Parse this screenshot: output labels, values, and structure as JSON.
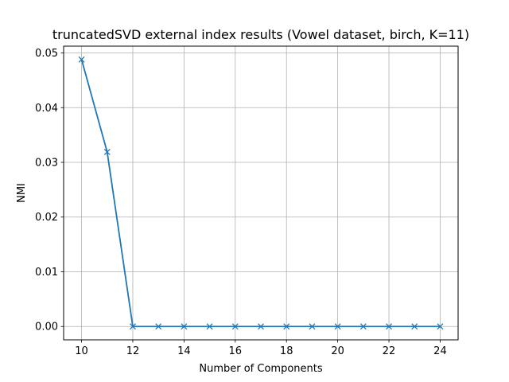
{
  "chart_data": {
    "type": "line",
    "title": "truncatedSVD external index results (Vowel dataset, birch, K=11)",
    "xlabel": "Number of Components",
    "ylabel": "NMI",
    "x": [
      10,
      11,
      12,
      13,
      14,
      15,
      16,
      17,
      18,
      19,
      20,
      21,
      22,
      23,
      24
    ],
    "series": [
      {
        "values": [
          0.0488,
          0.0319,
          0.0,
          0.0,
          0.0,
          0.0,
          0.0,
          0.0,
          0.0,
          0.0,
          0.0,
          0.0,
          0.0,
          0.0,
          0.0
        ],
        "color": "#1f77b4",
        "marker": "x"
      }
    ],
    "xticks": [
      10,
      12,
      14,
      16,
      18,
      20,
      22,
      24
    ],
    "xtick_labels": [
      "10",
      "12",
      "14",
      "16",
      "18",
      "20",
      "22",
      "24"
    ],
    "yticks": [
      0.0,
      0.01,
      0.02,
      0.03,
      0.04,
      0.05
    ],
    "ytick_labels": [
      "0.00",
      "0.01",
      "0.02",
      "0.03",
      "0.04",
      "0.05"
    ],
    "xlim": [
      9.3,
      24.7
    ],
    "ylim": [
      -0.00244,
      0.05124
    ],
    "grid": true
  }
}
